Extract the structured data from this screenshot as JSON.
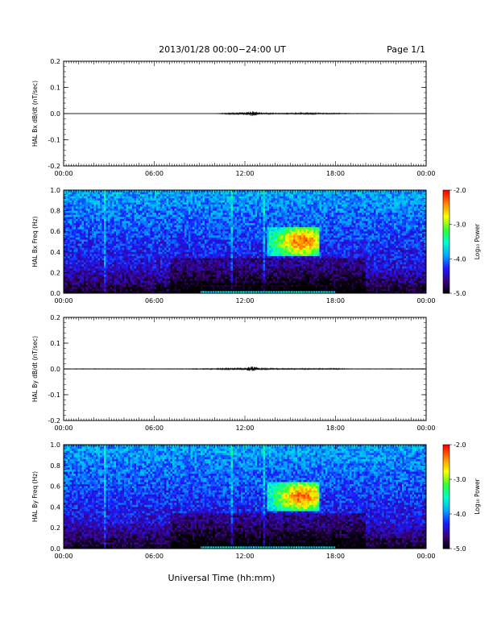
{
  "header": {
    "title": "2013/01/28  00:00−24:00 UT",
    "page_label": "Page 1/1"
  },
  "footer": {
    "xlabel": "Universal Time (hh:mm)"
  },
  "colorbar": {
    "label": "Log₁₀ Power",
    "ticks": [
      "-2.0",
      "-3.0",
      "-4.0",
      "-5.0"
    ],
    "colors": [
      "#000000",
      "#3a007a",
      "#1a1aff",
      "#00aaff",
      "#00ffcc",
      "#33ff33",
      "#ffff00",
      "#ff8800",
      "#ff0000"
    ]
  },
  "chart_data": [
    {
      "type": "line",
      "ylabel": "HAL Bx dB/dt (nT/sec)",
      "x_ticks": [
        "00:00",
        "06:00",
        "12:00",
        "18:00",
        "00:00"
      ],
      "y_ticks": [
        "0.2",
        "0.1",
        "0.0",
        "-0.1",
        "-0.2"
      ],
      "ylim": [
        -0.2,
        0.2
      ],
      "xlim_hours": [
        0,
        24
      ],
      "x_hours": [
        0,
        2,
        4,
        6,
        8,
        10,
        11,
        12,
        12.5,
        13,
        14,
        15,
        16,
        17,
        18,
        19,
        20,
        22,
        24
      ],
      "y": [
        0.0,
        0.0,
        0.0,
        0.0,
        0.0,
        0.0,
        0.003,
        0.004,
        0.008,
        0.003,
        0.002,
        0.002,
        0.003,
        0.002,
        0.002,
        0.001,
        0.001,
        0.0,
        0.0
      ]
    },
    {
      "type": "heatmap",
      "ylabel": "HAL Bx Freq (Hz)",
      "x_ticks": [
        "00:00",
        "06:00",
        "12:00",
        "18:00",
        "00:00"
      ],
      "y_ticks": [
        "1.0",
        "0.8",
        "0.6",
        "0.4",
        "0.2",
        "0.0"
      ],
      "ylim": [
        0.0,
        1.0
      ],
      "xlim_hours": [
        0,
        24
      ],
      "zlim_log_power": [
        -5.0,
        -2.0
      ],
      "pc1_event": {
        "start_hour": 13.5,
        "end_hour": 17.0,
        "freq_low": 0.35,
        "freq_high": 0.65,
        "peak_hour": 15.8,
        "peak_log_power": -2.3
      }
    },
    {
      "type": "line",
      "ylabel": "HAL By dB/dt (nT/sec)",
      "x_ticks": [
        "00:00",
        "06:00",
        "12:00",
        "18:00",
        "00:00"
      ],
      "y_ticks": [
        "0.2",
        "0.1",
        "0.0",
        "-0.1",
        "-0.2"
      ],
      "ylim": [
        -0.2,
        0.2
      ],
      "xlim_hours": [
        0,
        24
      ],
      "x_hours": [
        0,
        2,
        4,
        6,
        8,
        10,
        11,
        12,
        12.5,
        13,
        14,
        15,
        16,
        17,
        18,
        19,
        20,
        22,
        24
      ],
      "y": [
        0.001,
        0.001,
        0.001,
        0.001,
        0.001,
        0.002,
        0.003,
        0.004,
        0.008,
        0.003,
        0.002,
        0.002,
        0.002,
        0.002,
        0.002,
        0.001,
        0.001,
        0.001,
        0.001
      ]
    },
    {
      "type": "heatmap",
      "ylabel": "HAL By Freq (Hz)",
      "x_ticks": [
        "00:00",
        "06:00",
        "12:00",
        "18:00",
        "00:00"
      ],
      "y_ticks": [
        "1.0",
        "0.8",
        "0.6",
        "0.4",
        "0.2",
        "0.0"
      ],
      "ylim": [
        0.0,
        1.0
      ],
      "xlim_hours": [
        0,
        24
      ],
      "zlim_log_power": [
        -5.0,
        -2.0
      ],
      "pc1_event": {
        "start_hour": 13.5,
        "end_hour": 17.0,
        "freq_low": 0.35,
        "freq_high": 0.65,
        "peak_hour": 15.8,
        "peak_log_power": -2.3
      }
    }
  ]
}
